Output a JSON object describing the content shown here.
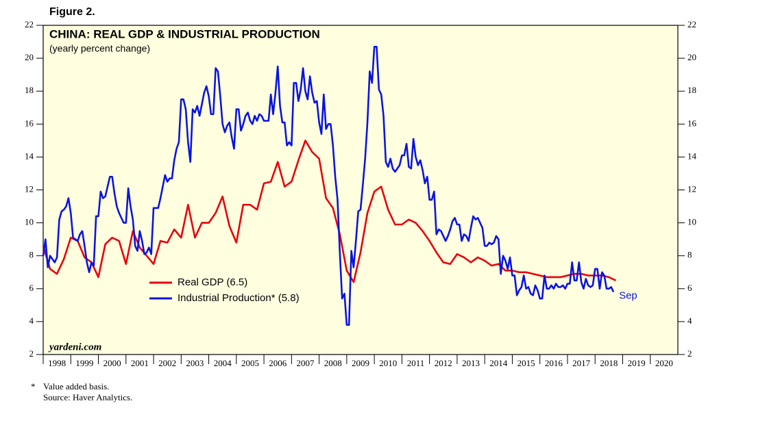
{
  "chart_data": {
    "type": "line",
    "figure_label": "Figure 2.",
    "title": "CHINA: REAL GDP & INDUSTRIAL PRODUCTION",
    "subtitle": "(yearly percent change)",
    "watermark": "yardeni.com",
    "annotation": "Sep",
    "footnote_marker": "*",
    "footnote": "Value added basis.",
    "source": "Source: Haver Analytics.",
    "xlim": [
      1998,
      2021
    ],
    "xticks": [
      1998,
      1999,
      2000,
      2001,
      2002,
      2003,
      2004,
      2005,
      2006,
      2007,
      2008,
      2009,
      2010,
      2011,
      2012,
      2013,
      2014,
      2015,
      2016,
      2017,
      2018,
      2019,
      2020
    ],
    "ylim": [
      2,
      22
    ],
    "yticks": [
      2,
      4,
      6,
      8,
      10,
      12,
      14,
      16,
      18,
      20,
      22
    ],
    "grid": false,
    "series": [
      {
        "name": "Real GDP (6.5)",
        "color": "#e8000b",
        "x": [
          1998,
          1998.25,
          1998.5,
          1998.75,
          1999,
          1999.25,
          1999.5,
          1999.75,
          2000,
          2000.25,
          2000.5,
          2000.75,
          2001,
          2001.25,
          2001.5,
          2001.75,
          2002,
          2002.25,
          2002.5,
          2002.75,
          2003,
          2003.25,
          2003.5,
          2003.75,
          2004,
          2004.25,
          2004.5,
          2004.75,
          2005,
          2005.25,
          2005.5,
          2005.75,
          2006,
          2006.25,
          2006.5,
          2006.75,
          2007,
          2007.25,
          2007.5,
          2007.75,
          2008,
          2008.25,
          2008.5,
          2008.75,
          2009,
          2009.25,
          2009.5,
          2009.75,
          2010,
          2010.25,
          2010.5,
          2010.75,
          2011,
          2011.25,
          2011.5,
          2011.75,
          2012,
          2012.25,
          2012.5,
          2012.75,
          2013,
          2013.25,
          2013.5,
          2013.75,
          2014,
          2014.25,
          2014.5,
          2014.75,
          2015,
          2015.25,
          2015.5,
          2015.75,
          2016,
          2016.25,
          2016.5,
          2016.75,
          2017,
          2017.25,
          2017.5,
          2017.75,
          2018,
          2018.25,
          2018.5,
          2018.75
        ],
        "values": [
          8.6,
          7.2,
          6.9,
          7.8,
          9.1,
          8.9,
          7.9,
          7.6,
          6.7,
          8.7,
          9.1,
          8.9,
          7.5,
          9.5,
          8.5,
          8.0,
          7.5,
          8.9,
          8.8,
          9.6,
          9.1,
          11.1,
          9.1,
          10.0,
          10.0,
          10.6,
          11.6,
          9.8,
          8.8,
          11.1,
          11.1,
          10.8,
          12.4,
          12.5,
          13.7,
          12.2,
          12.5,
          13.8,
          15.0,
          14.3,
          13.9,
          11.5,
          10.9,
          9.3,
          7.1,
          6.4,
          8.2,
          10.6,
          11.9,
          12.2,
          10.8,
          9.9,
          9.9,
          10.2,
          10.0,
          9.5,
          8.9,
          8.2,
          7.6,
          7.5,
          8.1,
          7.9,
          7.6,
          7.9,
          7.7,
          7.4,
          7.5,
          7.1,
          7.1,
          7.0,
          7.0,
          6.9,
          6.8,
          6.7,
          6.7,
          6.7,
          6.8,
          6.9,
          6.9,
          6.8,
          6.8,
          6.8,
          6.7,
          6.5
        ]
      },
      {
        "name": "Industrial Production* (5.8)",
        "color": "#0a14e0",
        "x": [
          1998,
          1998.083,
          1998.167,
          1998.25,
          1998.333,
          1998.417,
          1998.5,
          1998.583,
          1998.667,
          1998.75,
          1998.833,
          1998.917,
          1999,
          1999.083,
          1999.167,
          1999.25,
          1999.333,
          1999.417,
          1999.5,
          1999.583,
          1999.667,
          1999.75,
          1999.833,
          1999.917,
          2000,
          2000.083,
          2000.167,
          2000.25,
          2000.333,
          2000.417,
          2000.5,
          2000.583,
          2000.667,
          2000.75,
          2000.833,
          2000.917,
          2001,
          2001.083,
          2001.167,
          2001.25,
          2001.333,
          2001.417,
          2001.5,
          2001.583,
          2001.667,
          2001.75,
          2001.833,
          2001.917,
          2002,
          2002.083,
          2002.167,
          2002.25,
          2002.333,
          2002.417,
          2002.5,
          2002.583,
          2002.667,
          2002.75,
          2002.833,
          2002.917,
          2003,
          2003.083,
          2003.167,
          2003.25,
          2003.333,
          2003.417,
          2003.5,
          2003.583,
          2003.667,
          2003.75,
          2003.833,
          2003.917,
          2004,
          2004.083,
          2004.167,
          2004.25,
          2004.333,
          2004.417,
          2004.5,
          2004.583,
          2004.667,
          2004.75,
          2004.833,
          2004.917,
          2005,
          2005.083,
          2005.167,
          2005.25,
          2005.333,
          2005.417,
          2005.5,
          2005.583,
          2005.667,
          2005.75,
          2005.833,
          2005.917,
          2006,
          2006.083,
          2006.167,
          2006.25,
          2006.333,
          2006.417,
          2006.5,
          2006.583,
          2006.667,
          2006.75,
          2006.833,
          2006.917,
          2007,
          2007.083,
          2007.167,
          2007.25,
          2007.333,
          2007.417,
          2007.5,
          2007.583,
          2007.667,
          2007.75,
          2007.833,
          2007.917,
          2008,
          2008.083,
          2008.167,
          2008.25,
          2008.333,
          2008.417,
          2008.5,
          2008.583,
          2008.667,
          2008.75,
          2008.833,
          2008.917,
          2009,
          2009.083,
          2009.167,
          2009.25,
          2009.333,
          2009.417,
          2009.5,
          2009.583,
          2009.667,
          2009.75,
          2009.833,
          2009.917,
          2010,
          2010.083,
          2010.167,
          2010.25,
          2010.333,
          2010.417,
          2010.5,
          2010.583,
          2010.667,
          2010.75,
          2010.833,
          2010.917,
          2011,
          2011.083,
          2011.167,
          2011.25,
          2011.333,
          2011.417,
          2011.5,
          2011.583,
          2011.667,
          2011.75,
          2011.833,
          2011.917,
          2012,
          2012.083,
          2012.167,
          2012.25,
          2012.333,
          2012.417,
          2012.5,
          2012.583,
          2012.667,
          2012.75,
          2012.833,
          2012.917,
          2013,
          2013.083,
          2013.167,
          2013.25,
          2013.333,
          2013.417,
          2013.5,
          2013.583,
          2013.667,
          2013.75,
          2013.833,
          2013.917,
          2014,
          2014.083,
          2014.167,
          2014.25,
          2014.333,
          2014.417,
          2014.5,
          2014.583,
          2014.667,
          2014.75,
          2014.833,
          2014.917,
          2015,
          2015.083,
          2015.167,
          2015.25,
          2015.333,
          2015.417,
          2015.5,
          2015.583,
          2015.667,
          2015.75,
          2015.833,
          2015.917,
          2016,
          2016.083,
          2016.167,
          2016.25,
          2016.333,
          2016.417,
          2016.5,
          2016.583,
          2016.667,
          2016.75,
          2016.833,
          2016.917,
          2017,
          2017.083,
          2017.167,
          2017.25,
          2017.333,
          2017.417,
          2017.5,
          2017.583,
          2017.667,
          2017.75,
          2017.833,
          2017.917,
          2018,
          2018.083,
          2018.167,
          2018.25,
          2018.333,
          2018.417,
          2018.5,
          2018.583,
          2018.667
        ],
        "values": [
          8.0,
          9.0,
          7.3,
          8.0,
          7.8,
          7.6,
          7.9,
          10.2,
          10.7,
          10.8,
          11.0,
          11.5,
          10.6,
          9.1,
          9.0,
          8.9,
          9.3,
          9.5,
          8.6,
          7.6,
          7.0,
          7.6,
          7.4,
          10.4,
          10.4,
          11.9,
          11.5,
          11.6,
          12.2,
          12.8,
          12.8,
          11.8,
          11.0,
          10.6,
          10.3,
          10.0,
          10.0,
          12.1,
          11.0,
          10.2,
          8.6,
          8.3,
          9.5,
          8.9,
          8.1,
          8.2,
          8.5,
          8.1,
          10.9,
          10.9,
          10.9,
          11.5,
          12.2,
          12.9,
          12.5,
          12.7,
          12.7,
          13.8,
          14.5,
          14.9,
          17.5,
          17.5,
          16.9,
          14.9,
          13.7,
          16.9,
          16.7,
          17.1,
          16.5,
          17.2,
          17.9,
          18.3,
          17.7,
          16.6,
          16.6,
          19.4,
          19.2,
          17.7,
          16.0,
          15.5,
          15.9,
          16.1,
          15.2,
          14.5,
          16.9,
          16.9,
          15.6,
          16.0,
          16.5,
          16.7,
          16.2,
          16.0,
          16.5,
          16.2,
          16.6,
          16.5,
          16.2,
          16.2,
          16.2,
          17.8,
          16.6,
          17.9,
          19.5,
          17.1,
          16.1,
          16.1,
          14.7,
          14.9,
          14.7,
          18.5,
          18.5,
          17.4,
          18.1,
          19.4,
          18.0,
          17.5,
          18.9,
          17.9,
          17.3,
          17.4,
          16.1,
          15.4,
          17.8,
          15.7,
          16.0,
          16.0,
          14.7,
          12.8,
          11.4,
          8.2,
          5.4,
          5.7,
          3.8,
          3.8,
          8.3,
          7.3,
          8.9,
          10.7,
          10.8,
          12.3,
          13.9,
          16.1,
          19.2,
          18.5,
          20.7,
          20.7,
          18.1,
          17.8,
          16.5,
          13.7,
          13.4,
          13.9,
          13.3,
          13.1,
          13.3,
          13.5,
          14.1,
          14.1,
          14.8,
          13.4,
          13.3,
          15.1,
          14.0,
          13.5,
          13.8,
          13.2,
          12.4,
          12.8,
          11.4,
          11.4,
          11.9,
          9.3,
          9.6,
          9.5,
          9.2,
          8.9,
          9.2,
          9.6,
          10.1,
          10.3,
          9.9,
          9.9,
          8.9,
          9.3,
          9.2,
          8.9,
          9.7,
          10.4,
          10.2,
          10.3,
          10.0,
          9.7,
          8.6,
          8.6,
          8.8,
          8.7,
          8.8,
          9.2,
          9.0,
          6.9,
          8.0,
          7.7,
          7.2,
          7.9,
          6.8,
          6.8,
          5.6,
          5.9,
          6.1,
          6.8,
          6.0,
          6.1,
          5.7,
          5.6,
          6.2,
          5.9,
          5.4,
          5.4,
          6.8,
          6.0,
          6.0,
          6.2,
          6.0,
          6.3,
          6.1,
          6.1,
          6.2,
          6.0,
          6.3,
          6.3,
          7.6,
          6.5,
          6.5,
          7.6,
          6.4,
          6.0,
          6.6,
          6.2,
          6.1,
          6.2,
          7.2,
          7.2,
          6.0,
          7.0,
          6.8,
          6.0,
          6.0,
          6.1,
          5.8
        ]
      }
    ]
  }
}
